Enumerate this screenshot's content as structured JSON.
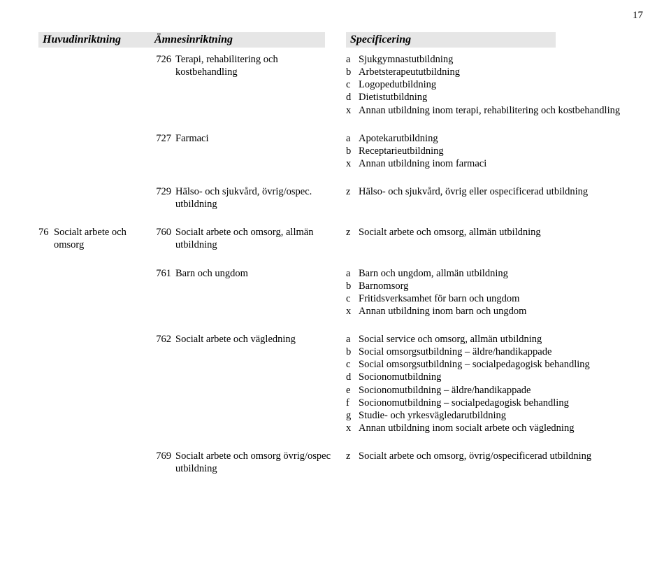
{
  "page_number": "17",
  "headers": {
    "huvud": "Huvudinriktning",
    "amnes": "Ämnesinriktning",
    "spec": "Specificering"
  },
  "colors": {
    "header_bg": "#e6e6e6",
    "text": "#000000",
    "page_bg": "#ffffff"
  },
  "rows": [
    {
      "gap": "sm",
      "huvud_code": "",
      "huvud_text": "",
      "amnes_code": "726",
      "amnes_text": "Terapi, rehabilitering och kostbehandling",
      "specs": [
        {
          "l": "a",
          "t": "Sjukgymnastutbildning"
        },
        {
          "l": "b",
          "t": "Arbetsterapeututbildning"
        },
        {
          "l": "c",
          "t": "Logopedutbildning"
        },
        {
          "l": "d",
          "t": "Dietistutbildning"
        },
        {
          "l": "x",
          "t": "Annan utbildning inom terapi, rehabilitering och kostbehandling"
        }
      ]
    },
    {
      "gap": "lg",
      "huvud_code": "",
      "huvud_text": "",
      "amnes_code": "727",
      "amnes_text": "Farmaci",
      "specs": [
        {
          "l": "a",
          "t": "Apotekarutbildning"
        },
        {
          "l": "b",
          "t": "Receptarieutbildning"
        },
        {
          "l": "x",
          "t": "Annan utbildning inom farmaci"
        }
      ]
    },
    {
      "gap": "lg",
      "huvud_code": "",
      "huvud_text": "",
      "amnes_code": "729",
      "amnes_text": "Hälso- och sjukvård, övrig/ospec. utbildning",
      "specs": [
        {
          "l": "z",
          "t": "Hälso- och sjukvård, övrig eller ospecificerad utbildning"
        }
      ]
    },
    {
      "gap": "lg",
      "huvud_code": "76",
      "huvud_text": "Socialt arbete och omsorg",
      "amnes_code": "760",
      "amnes_text": "Socialt arbete och omsorg, allmän utbildning",
      "specs": [
        {
          "l": "z",
          "t": "Socialt arbete och omsorg, allmän utbildning"
        }
      ]
    },
    {
      "gap": "lg",
      "huvud_code": "",
      "huvud_text": "",
      "amnes_code": "761",
      "amnes_text": "Barn och ungdom",
      "specs": [
        {
          "l": "a",
          "t": "Barn och ungdom, allmän utbildning"
        },
        {
          "l": "b",
          "t": "Barnomsorg"
        },
        {
          "l": "c",
          "t": "Fritidsverksamhet för barn och ungdom"
        },
        {
          "l": "x",
          "t": "Annan utbildning inom barn och ungdom"
        }
      ]
    },
    {
      "gap": "lg",
      "huvud_code": "",
      "huvud_text": "",
      "amnes_code": "762",
      "amnes_text": "Socialt arbete och vägledning",
      "specs": [
        {
          "l": "a",
          "t": "Social service och omsorg, allmän utbildning"
        },
        {
          "l": "b",
          "t": "Social omsorgsutbildning – äldre/handikappade"
        },
        {
          "l": "c",
          "t": "Social omsorgsutbildning – socialpedagogisk behandling"
        },
        {
          "l": "d",
          "t": "Socionomutbildning"
        },
        {
          "l": "e",
          "t": "Socionomutbildning – äldre/handikappade"
        },
        {
          "l": "f",
          "t": "Socionomutbildning – socialpedagogisk behandling"
        },
        {
          "l": "g",
          "t": "Studie- och yrkesvägledarutbildning"
        },
        {
          "l": "x",
          "t": "Annan utbildning inom socialt arbete och vägledning"
        }
      ]
    },
    {
      "gap": "lg",
      "huvud_code": "",
      "huvud_text": "",
      "amnes_code": "769",
      "amnes_text": "Socialt arbete och omsorg övrig/ospec utbildning",
      "specs": [
        {
          "l": "z",
          "t": "Socialt arbete och omsorg, övrig/ospecificerad utbildning"
        }
      ]
    }
  ]
}
